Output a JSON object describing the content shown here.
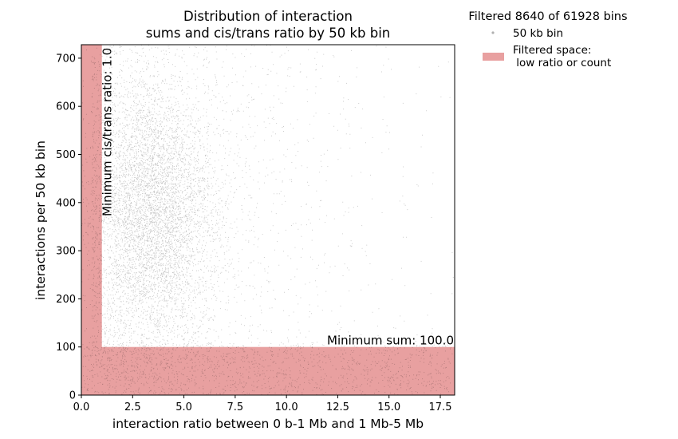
{
  "chart_data": {
    "type": "scatter",
    "title": "Distribution of interaction\nsums and cis/trans ratio by 50 kb bin",
    "title_lines": [
      "Distribution of interaction",
      "sums and cis/trans ratio by 50 kb bin"
    ],
    "xlabel": "interaction ratio between 0 b-1 Mb and 1 Mb-5 Mb",
    "ylabel": "interactions per 50 kb bin",
    "xlim": [
      0,
      18.2
    ],
    "ylim": [
      0,
      728
    ],
    "xticks": [
      0.0,
      2.5,
      5.0,
      7.5,
      10.0,
      12.5,
      15.0,
      17.5
    ],
    "xtick_labels": [
      "0.0",
      "2.5",
      "5.0",
      "7.5",
      "10.0",
      "12.5",
      "15.0",
      "17.5"
    ],
    "yticks": [
      0,
      100,
      200,
      300,
      400,
      500,
      600,
      700
    ],
    "ytick_labels": [
      "0",
      "100",
      "200",
      "300",
      "400",
      "500",
      "600",
      "700"
    ],
    "legend_title": "Filtered 8640 of 61928 bins",
    "legend_placement": "outside-right-top",
    "legend": [
      {
        "label": "50 kb bin",
        "marker": "dot",
        "color": "#b0b0b0"
      },
      {
        "label": "Filtered space:\n low ratio or count",
        "label_lines": [
          "Filtered space:",
          " low ratio or count"
        ],
        "marker": "patch",
        "color": "#e8a0a0"
      }
    ],
    "filter": {
      "min_ratio": 1.0,
      "min_sum": 100.0,
      "color": "#e8a0a0"
    },
    "annotations": [
      {
        "text": "Minimum cis/trans ratio: 1.0",
        "orientation": "vertical"
      },
      {
        "text": "Minimum sum: 100.0",
        "orientation": "horizontal"
      }
    ],
    "point_color": "#000000",
    "point_count_total": 61928,
    "point_count_filtered": 8640,
    "density_summary": {
      "mode_ratio": 3.5,
      "mode_sum": 380,
      "ratio_spread": 1.6,
      "sum_spread": 140
    },
    "grid": false
  }
}
